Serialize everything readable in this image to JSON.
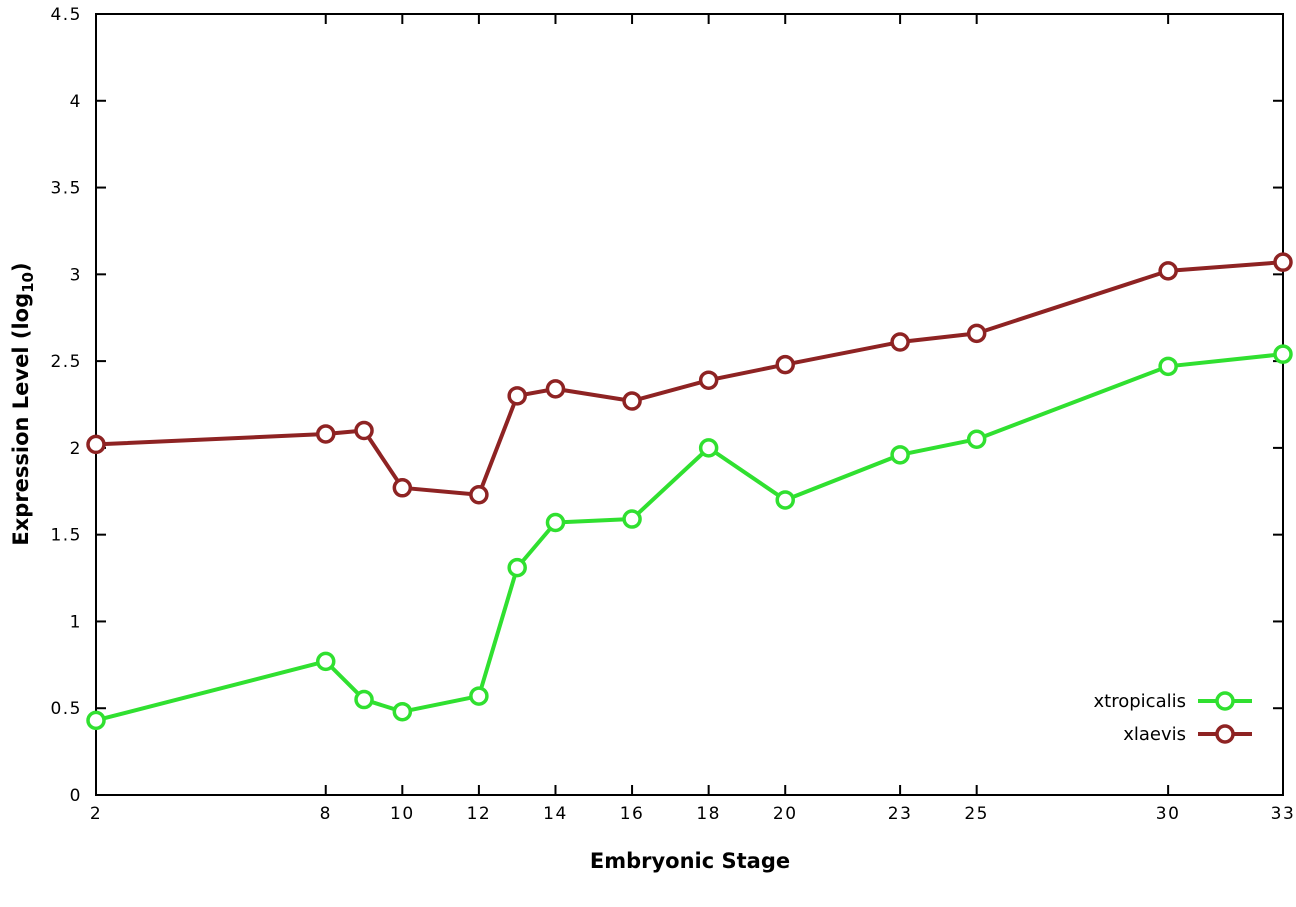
{
  "chart_data": {
    "type": "line",
    "title": "",
    "xlabel": "Embryonic Stage",
    "ylabel_main": "Expression Level (log",
    "ylabel_sub": "10",
    "ylabel_close": ")",
    "xlim": [
      2,
      33
    ],
    "ylim": [
      0,
      4.5
    ],
    "x_ticks": [
      2,
      8,
      10,
      12,
      14,
      16,
      18,
      20,
      23,
      25,
      30,
      33
    ],
    "y_ticks": [
      0,
      0.5,
      1,
      1.5,
      2,
      2.5,
      3,
      3.5,
      4,
      4.5
    ],
    "x": [
      2,
      8,
      9,
      10,
      12,
      13,
      14,
      16,
      18,
      20,
      23,
      25,
      30,
      33
    ],
    "series": [
      {
        "name": "xtropicalis",
        "color": "#30e030",
        "values": [
          0.43,
          0.77,
          0.55,
          0.48,
          0.57,
          1.31,
          1.57,
          1.59,
          2.0,
          1.7,
          1.96,
          2.05,
          2.47,
          2.54
        ]
      },
      {
        "name": "xlaevis",
        "color": "#8e2323",
        "values": [
          2.02,
          2.08,
          2.1,
          1.77,
          1.73,
          2.3,
          2.34,
          2.27,
          2.39,
          2.48,
          2.61,
          2.66,
          3.02,
          3.07
        ]
      }
    ],
    "legend_position": "bottom-right",
    "grid": false,
    "marker": "open-circle",
    "line_width": 4
  }
}
